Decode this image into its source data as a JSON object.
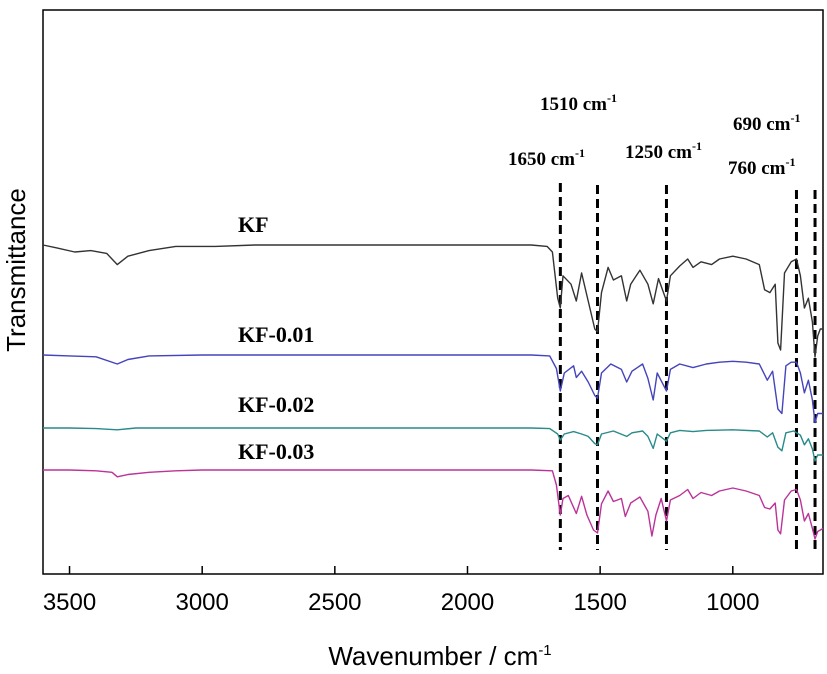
{
  "chart_data": {
    "type": "line",
    "xlabel": "Wavenumber / cm",
    "xlabel_superscript": "-1",
    "ylabel": "Transmittance",
    "xlim": [
      3600,
      660
    ],
    "x_reversed": true,
    "y_ticks_shown": false,
    "grid": false,
    "x_ticks": [
      3500,
      3000,
      2500,
      2000,
      1500,
      1000
    ],
    "x_tick_labels": [
      "3500",
      "3000",
      "2500",
      "2000",
      "1500",
      "1000"
    ],
    "series": [
      {
        "name": "KF",
        "color": "#333333",
        "baseline": 1.0,
        "points": [
          [
            3600,
            1.0
          ],
          [
            3550,
            0.98
          ],
          [
            3480,
            0.95
          ],
          [
            3420,
            0.96
          ],
          [
            3360,
            0.94
          ],
          [
            3320,
            0.86
          ],
          [
            3280,
            0.92
          ],
          [
            3200,
            0.96
          ],
          [
            3100,
            0.99
          ],
          [
            2950,
            0.99
          ],
          [
            2800,
            1.0
          ],
          [
            2500,
            1.0
          ],
          [
            2200,
            1.0
          ],
          [
            1900,
            1.0
          ],
          [
            1760,
            1.0
          ],
          [
            1700,
            0.99
          ],
          [
            1680,
            0.95
          ],
          [
            1660,
            0.62
          ],
          [
            1650,
            0.55
          ],
          [
            1640,
            0.78
          ],
          [
            1610,
            0.72
          ],
          [
            1590,
            0.6
          ],
          [
            1570,
            0.8
          ],
          [
            1545,
            0.6
          ],
          [
            1520,
            0.4
          ],
          [
            1510,
            0.38
          ],
          [
            1495,
            0.66
          ],
          [
            1470,
            0.84
          ],
          [
            1450,
            0.75
          ],
          [
            1420,
            0.78
          ],
          [
            1400,
            0.6
          ],
          [
            1385,
            0.72
          ],
          [
            1350,
            0.82
          ],
          [
            1320,
            0.72
          ],
          [
            1300,
            0.58
          ],
          [
            1280,
            0.76
          ],
          [
            1250,
            0.6
          ],
          [
            1235,
            0.78
          ],
          [
            1200,
            0.85
          ],
          [
            1170,
            0.9
          ],
          [
            1150,
            0.84
          ],
          [
            1120,
            0.88
          ],
          [
            1080,
            0.86
          ],
          [
            1050,
            0.9
          ],
          [
            1000,
            0.92
          ],
          [
            950,
            0.9
          ],
          [
            900,
            0.86
          ],
          [
            880,
            0.68
          ],
          [
            860,
            0.66
          ],
          [
            840,
            0.72
          ],
          [
            830,
            0.3
          ],
          [
            820,
            0.25
          ],
          [
            805,
            0.8
          ],
          [
            780,
            0.88
          ],
          [
            760,
            0.9
          ],
          [
            745,
            0.78
          ],
          [
            730,
            0.55
          ],
          [
            715,
            0.62
          ],
          [
            700,
            0.45
          ],
          [
            690,
            0.2
          ],
          [
            680,
            0.35
          ],
          [
            670,
            0.4
          ],
          [
            660,
            0.4
          ]
        ]
      },
      {
        "name": "KF-0.01",
        "color": "#4444bb",
        "baseline": 1.0,
        "points": [
          [
            3600,
            1.0
          ],
          [
            3500,
            0.99
          ],
          [
            3400,
            0.98
          ],
          [
            3320,
            0.9
          ],
          [
            3280,
            0.95
          ],
          [
            3200,
            0.99
          ],
          [
            3000,
            1.0
          ],
          [
            2500,
            1.0
          ],
          [
            2000,
            1.0
          ],
          [
            1760,
            1.0
          ],
          [
            1690,
            0.99
          ],
          [
            1665,
            0.85
          ],
          [
            1650,
            0.6
          ],
          [
            1635,
            0.8
          ],
          [
            1600,
            0.88
          ],
          [
            1590,
            0.75
          ],
          [
            1570,
            0.82
          ],
          [
            1545,
            0.7
          ],
          [
            1520,
            0.55
          ],
          [
            1510,
            0.52
          ],
          [
            1495,
            0.8
          ],
          [
            1460,
            0.9
          ],
          [
            1420,
            0.84
          ],
          [
            1400,
            0.7
          ],
          [
            1380,
            0.82
          ],
          [
            1340,
            0.9
          ],
          [
            1320,
            0.74
          ],
          [
            1300,
            0.5
          ],
          [
            1285,
            0.8
          ],
          [
            1250,
            0.6
          ],
          [
            1235,
            0.84
          ],
          [
            1200,
            0.9
          ],
          [
            1150,
            0.86
          ],
          [
            1100,
            0.9
          ],
          [
            1050,
            0.92
          ],
          [
            1000,
            0.93
          ],
          [
            950,
            0.92
          ],
          [
            900,
            0.9
          ],
          [
            870,
            0.72
          ],
          [
            850,
            0.82
          ],
          [
            830,
            0.4
          ],
          [
            815,
            0.35
          ],
          [
            800,
            0.88
          ],
          [
            780,
            0.92
          ],
          [
            760,
            0.92
          ],
          [
            745,
            0.8
          ],
          [
            730,
            0.58
          ],
          [
            715,
            0.72
          ],
          [
            700,
            0.5
          ],
          [
            690,
            0.25
          ],
          [
            680,
            0.35
          ],
          [
            660,
            0.35
          ]
        ]
      },
      {
        "name": "KF-0.02",
        "color": "#2a8a8a",
        "baseline": 1.0,
        "points": [
          [
            3600,
            1.0
          ],
          [
            3500,
            1.0
          ],
          [
            3400,
            0.99
          ],
          [
            3320,
            0.97
          ],
          [
            3250,
            1.0
          ],
          [
            3000,
            1.0
          ],
          [
            2500,
            1.0
          ],
          [
            2000,
            1.0
          ],
          [
            1760,
            1.0
          ],
          [
            1690,
            0.99
          ],
          [
            1660,
            0.9
          ],
          [
            1650,
            0.8
          ],
          [
            1635,
            0.9
          ],
          [
            1600,
            0.94
          ],
          [
            1570,
            0.9
          ],
          [
            1545,
            0.86
          ],
          [
            1520,
            0.74
          ],
          [
            1510,
            0.72
          ],
          [
            1495,
            0.9
          ],
          [
            1450,
            0.95
          ],
          [
            1400,
            0.86
          ],
          [
            1380,
            0.92
          ],
          [
            1340,
            0.95
          ],
          [
            1320,
            0.86
          ],
          [
            1300,
            0.66
          ],
          [
            1285,
            0.9
          ],
          [
            1250,
            0.78
          ],
          [
            1235,
            0.92
          ],
          [
            1200,
            0.96
          ],
          [
            1150,
            0.94
          ],
          [
            1100,
            0.96
          ],
          [
            1000,
            0.97
          ],
          [
            900,
            0.95
          ],
          [
            870,
            0.85
          ],
          [
            850,
            0.92
          ],
          [
            830,
            0.68
          ],
          [
            815,
            0.62
          ],
          [
            800,
            0.92
          ],
          [
            770,
            0.95
          ],
          [
            745,
            0.88
          ],
          [
            730,
            0.72
          ],
          [
            715,
            0.82
          ],
          [
            700,
            0.65
          ],
          [
            690,
            0.45
          ],
          [
            680,
            0.55
          ],
          [
            660,
            0.55
          ]
        ]
      },
      {
        "name": "KF-0.03",
        "color": "#bb3399",
        "baseline": 1.0,
        "points": [
          [
            3600,
            1.0
          ],
          [
            3500,
            1.0
          ],
          [
            3400,
            0.99
          ],
          [
            3340,
            0.97
          ],
          [
            3320,
            0.91
          ],
          [
            3280,
            0.94
          ],
          [
            3200,
            0.97
          ],
          [
            3100,
            0.99
          ],
          [
            3000,
            1.0
          ],
          [
            2500,
            1.0
          ],
          [
            2000,
            1.0
          ],
          [
            1760,
            1.0
          ],
          [
            1680,
            0.99
          ],
          [
            1665,
            0.8
          ],
          [
            1650,
            0.4
          ],
          [
            1640,
            0.62
          ],
          [
            1620,
            0.66
          ],
          [
            1590,
            0.42
          ],
          [
            1570,
            0.65
          ],
          [
            1550,
            0.4
          ],
          [
            1525,
            0.2
          ],
          [
            1510,
            0.16
          ],
          [
            1495,
            0.55
          ],
          [
            1470,
            0.72
          ],
          [
            1450,
            0.58
          ],
          [
            1420,
            0.62
          ],
          [
            1405,
            0.38
          ],
          [
            1385,
            0.56
          ],
          [
            1350,
            0.64
          ],
          [
            1320,
            0.45
          ],
          [
            1305,
            0.12
          ],
          [
            1290,
            0.4
          ],
          [
            1270,
            0.62
          ],
          [
            1250,
            0.32
          ],
          [
            1235,
            0.6
          ],
          [
            1200,
            0.66
          ],
          [
            1170,
            0.74
          ],
          [
            1150,
            0.62
          ],
          [
            1120,
            0.7
          ],
          [
            1080,
            0.66
          ],
          [
            1050,
            0.72
          ],
          [
            1000,
            0.76
          ],
          [
            950,
            0.72
          ],
          [
            900,
            0.66
          ],
          [
            880,
            0.5
          ],
          [
            860,
            0.48
          ],
          [
            840,
            0.56
          ],
          [
            830,
            0.2
          ],
          [
            820,
            0.15
          ],
          [
            805,
            0.6
          ],
          [
            780,
            0.72
          ],
          [
            760,
            0.74
          ],
          [
            745,
            0.6
          ],
          [
            730,
            0.32
          ],
          [
            715,
            0.42
          ],
          [
            700,
            0.22
          ],
          [
            690,
            0.08
          ],
          [
            680,
            0.18
          ],
          [
            660,
            0.22
          ]
        ]
      }
    ],
    "annotations": [
      {
        "text": "1650 cm",
        "sup": "-1",
        "x": 1650
      },
      {
        "text": "1510 cm",
        "sup": "-1",
        "x": 1510
      },
      {
        "text": "1250 cm",
        "sup": "-1",
        "x": 1250
      },
      {
        "text": "760 cm",
        "sup": "-1",
        "x": 760
      },
      {
        "text": "690 cm",
        "sup": "-1",
        "x": 690
      }
    ]
  }
}
